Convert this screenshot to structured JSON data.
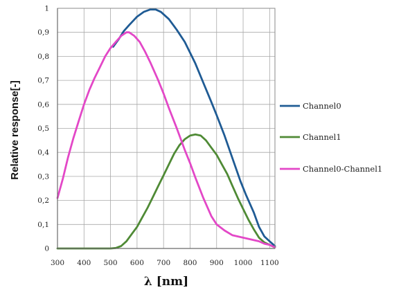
{
  "chart_data": {
    "type": "line",
    "title": "",
    "xlabel": "λ [nm]",
    "ylabel": "Relative response[-]",
    "xlim": [
      300,
      1120
    ],
    "ylim": [
      0,
      1
    ],
    "x_ticks": [
      300,
      400,
      500,
      600,
      700,
      800,
      900,
      1000,
      1100
    ],
    "y_ticks": [
      0,
      0.1,
      0.2,
      0.3,
      0.4,
      0.5,
      0.6,
      0.7,
      0.8,
      0.9,
      1
    ],
    "y_tick_labels": [
      "0",
      "0,1",
      "0,2",
      "0,3",
      "0,4",
      "0,5",
      "0,6",
      "0,7",
      "0,8",
      "0,9",
      "1"
    ],
    "grid": true,
    "legend_position": "right",
    "series": [
      {
        "name": "Channel0",
        "color": "#1f5b94",
        "x": [
          510,
          530,
          550,
          570,
          600,
          625,
          650,
          670,
          690,
          720,
          750,
          780,
          800,
          820,
          850,
          880,
          900,
          930,
          960,
          990,
          1010,
          1040,
          1060,
          1080,
          1100,
          1120
        ],
        "y": [
          0.84,
          0.87,
          0.905,
          0.93,
          0.965,
          0.985,
          0.995,
          0.995,
          0.985,
          0.955,
          0.91,
          0.86,
          0.815,
          0.77,
          0.69,
          0.61,
          0.555,
          0.47,
          0.375,
          0.28,
          0.225,
          0.15,
          0.09,
          0.05,
          0.03,
          0.01
        ]
      },
      {
        "name": "Channel1",
        "color": "#4f8a35",
        "x": [
          300,
          400,
          500,
          520,
          540,
          560,
          580,
          600,
          620,
          640,
          660,
          680,
          700,
          720,
          740,
          760,
          780,
          800,
          820,
          840,
          860,
          880,
          900,
          920,
          940,
          960,
          980,
          1000,
          1020,
          1040,
          1060,
          1080,
          1100,
          1120
        ],
        "y": [
          0,
          0,
          0,
          0.002,
          0.01,
          0.03,
          0.06,
          0.09,
          0.13,
          0.17,
          0.215,
          0.26,
          0.305,
          0.35,
          0.395,
          0.43,
          0.455,
          0.47,
          0.475,
          0.47,
          0.45,
          0.42,
          0.39,
          0.35,
          0.31,
          0.26,
          0.21,
          0.165,
          0.12,
          0.08,
          0.045,
          0.025,
          0.015,
          0.005
        ]
      },
      {
        "name": "Channel0-Channel1",
        "color": "#e347c7",
        "x": [
          300,
          320,
          340,
          360,
          380,
          400,
          420,
          440,
          460,
          480,
          500,
          520,
          540,
          560,
          570,
          590,
          610,
          630,
          650,
          680,
          700,
          720,
          750,
          780,
          800,
          820,
          850,
          880,
          900,
          930,
          960,
          980,
          1000,
          1020,
          1040,
          1060,
          1080,
          1100,
          1120
        ],
        "y": [
          0.21,
          0.29,
          0.38,
          0.46,
          0.53,
          0.6,
          0.66,
          0.71,
          0.755,
          0.8,
          0.835,
          0.86,
          0.885,
          0.9,
          0.9,
          0.885,
          0.86,
          0.82,
          0.775,
          0.7,
          0.645,
          0.585,
          0.5,
          0.41,
          0.355,
          0.295,
          0.21,
          0.135,
          0.1,
          0.075,
          0.055,
          0.05,
          0.045,
          0.04,
          0.035,
          0.03,
          0.02,
          0.015,
          0.005
        ]
      }
    ]
  }
}
